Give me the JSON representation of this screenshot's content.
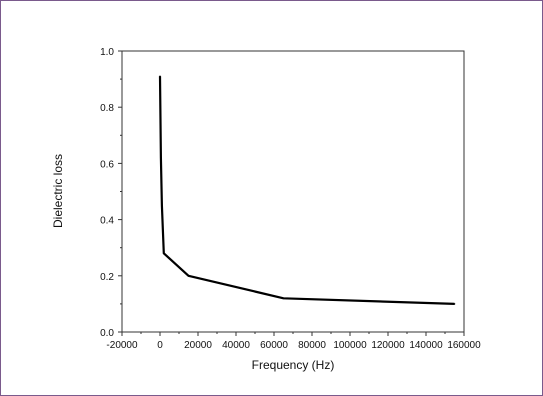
{
  "chart_data": {
    "type": "line",
    "xlabel": "Frequency (Hz)",
    "ylabel": "Dielectric loss",
    "xlim": [
      -20000,
      160000
    ],
    "ylim": [
      0.0,
      1.0
    ],
    "x_ticks": [
      "-20000",
      "0",
      "20000",
      "40000",
      "60000",
      "80000",
      "100000",
      "120000",
      "140000",
      "160000"
    ],
    "y_ticks": [
      "0.0",
      "0.2",
      "0.4",
      "0.6",
      "0.8",
      "1.0"
    ],
    "grid": false,
    "series": [
      {
        "x": [
          0,
          500,
          1000,
          2000,
          15000,
          65000,
          155000
        ],
        "y": [
          0.91,
          0.62,
          0.45,
          0.28,
          0.2,
          0.12,
          0.1
        ]
      }
    ],
    "colors": {
      "line": "#000000",
      "frame": "#7a5a8c"
    }
  }
}
